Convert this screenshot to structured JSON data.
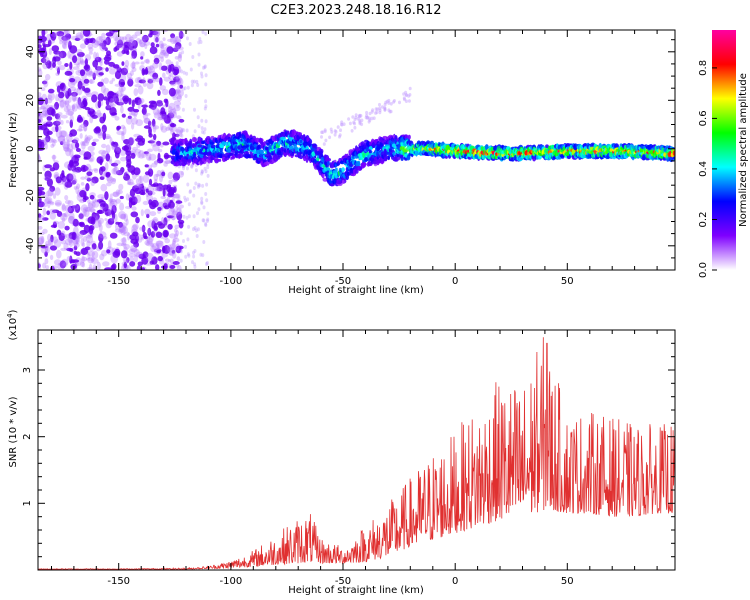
{
  "figure_title": "C2E3.2023.248.18.16.R12",
  "chart_data": [
    {
      "type": "heatmap",
      "title": "C2E3.2023.248.18.16.R12",
      "xlabel": "Height of straight line (km)",
      "ylabel": "Frequency (Hz)",
      "xlim": [
        -186,
        98
      ],
      "ylim": [
        -50,
        49
      ],
      "xticks": [
        -150,
        -100,
        -50,
        0,
        50
      ],
      "xtick_labels": [
        "-150",
        "-100",
        "-50",
        "0",
        "50"
      ],
      "yticks": [
        -40,
        -20,
        0,
        20,
        40
      ],
      "ytick_labels": [
        "-40",
        "-20",
        "0",
        "20",
        "40"
      ],
      "colorbar": {
        "label": "Normalized spectral amplitude",
        "range": [
          0,
          0.95
        ],
        "ticks": [
          0,
          0.2,
          0.4,
          0.6,
          0.8
        ],
        "tick_labels": [
          "0.0",
          "0.2",
          "0.4",
          "0.6",
          "0.8"
        ],
        "colormap": [
          "#ffffff",
          "#7f00ff",
          "#0000ff",
          "#00ffff",
          "#00ff00",
          "#ffff00",
          "#ff0000",
          "#ff00a0"
        ]
      },
      "ridge": {
        "description_x": [
          -125,
          -115,
          -105,
          -95,
          -85,
          -75,
          -65,
          -60,
          -55,
          -50,
          -45,
          -40,
          -35,
          -30,
          -25,
          -20,
          -10,
          0,
          25,
          50,
          75,
          98
        ],
        "frequency_hz": [
          -2,
          -1,
          0,
          2,
          -2,
          3,
          0,
          -5,
          -11,
          -9,
          -5,
          -2,
          -1,
          0,
          0,
          0,
          0,
          -1,
          -2,
          -1,
          -1,
          -2
        ],
        "amplitude": [
          0.35,
          0.4,
          0.4,
          0.45,
          0.4,
          0.45,
          0.4,
          0.4,
          0.45,
          0.45,
          0.4,
          0.45,
          0.4,
          0.4,
          0.45,
          0.6,
          0.7,
          0.8,
          0.75,
          0.75,
          0.75,
          0.75
        ]
      }
    },
    {
      "type": "line",
      "title": "",
      "xlabel": "Height of straight line (km)",
      "ylabel": "SNR (10 * v/v)",
      "y_multiplier": "(x10^4)",
      "xlim": [
        -186,
        98
      ],
      "ylim": [
        0,
        3.6
      ],
      "xticks": [
        -150,
        -100,
        -50,
        0,
        50
      ],
      "xtick_labels": [
        "-150",
        "-100",
        "-50",
        "0",
        "50"
      ],
      "yticks": [
        1,
        2,
        3
      ],
      "ytick_labels": [
        "1",
        "2",
        "3"
      ],
      "color": "#e03030",
      "envelope": {
        "x": [
          -186,
          -150,
          -120,
          -110,
          -100,
          -90,
          -80,
          -70,
          -65,
          -60,
          -50,
          -40,
          -30,
          -20,
          -10,
          0,
          10,
          20,
          30,
          40,
          41,
          50,
          60,
          70,
          80,
          90,
          98
        ],
        "baseline": [
          0.01,
          0.01,
          0.01,
          0.02,
          0.03,
          0.05,
          0.08,
          0.1,
          0.12,
          0.1,
          0.1,
          0.12,
          0.2,
          0.35,
          0.45,
          0.55,
          0.65,
          0.75,
          0.8,
          0.9,
          0.9,
          0.85,
          0.85,
          0.8,
          0.8,
          0.85,
          0.85
        ],
        "peak": [
          0.02,
          0.02,
          0.03,
          0.06,
          0.15,
          0.3,
          0.55,
          0.8,
          0.9,
          0.5,
          0.35,
          0.7,
          1.0,
          1.4,
          1.8,
          2.1,
          2.5,
          2.9,
          2.8,
          3.6,
          3.4,
          2.4,
          2.4,
          2.3,
          2.2,
          2.2,
          2.2
        ]
      }
    }
  ]
}
